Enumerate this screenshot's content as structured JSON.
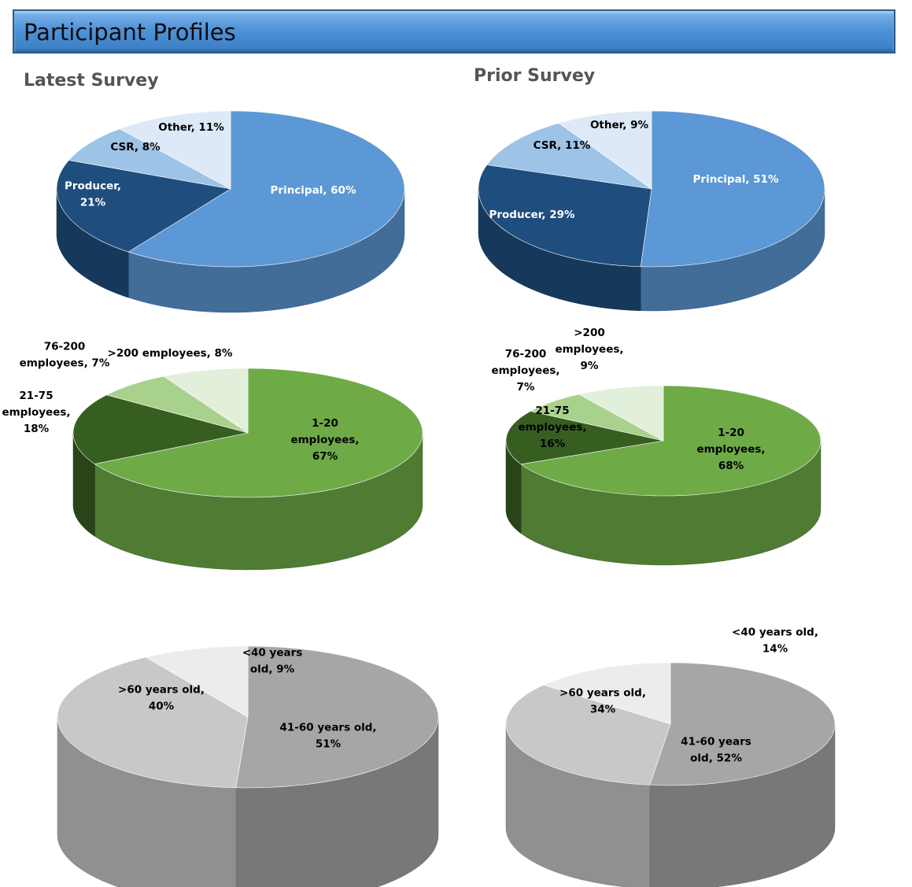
{
  "banner": {
    "title": "Participant Profiles"
  },
  "columns": {
    "latest": "Latest Survey",
    "prior": "Prior Survey"
  },
  "colors": {
    "blue": [
      "#5b98d5",
      "#1f4e7e",
      "#9dc3e6",
      "#dde9f6"
    ],
    "green": [
      "#6eab47",
      "#375e21",
      "#a9d18e",
      "#e2efda"
    ],
    "gray": [
      "#a6a6a6",
      "#c8c8c8",
      "#ececec"
    ]
  },
  "chart_data": [
    {
      "type": "pie",
      "id": "role-latest",
      "panel": "Latest Survey",
      "slices": [
        {
          "label": "Principal, 60%",
          "value": 60
        },
        {
          "label": "Producer, 21%",
          "value": 21
        },
        {
          "label": "CSR, 8%",
          "value": 8
        },
        {
          "label": "Other, 11%",
          "value": 11
        }
      ]
    },
    {
      "type": "pie",
      "id": "role-prior",
      "panel": "Prior Survey",
      "slices": [
        {
          "label": "Principal, 51%",
          "value": 51
        },
        {
          "label": "Producer, 29%",
          "value": 29
        },
        {
          "label": "CSR, 11%",
          "value": 11
        },
        {
          "label": "Other, 9%",
          "value": 9
        }
      ]
    },
    {
      "type": "pie",
      "id": "size-latest",
      "panel": "Latest Survey",
      "slices": [
        {
          "label": "1-20 employees, 67%",
          "value": 67
        },
        {
          "label": "21-75 employees, 18%",
          "value": 18
        },
        {
          "label": "76-200 employees, 7%",
          "value": 7
        },
        {
          "label": ">200 employees, 8%",
          "value": 8
        }
      ]
    },
    {
      "type": "pie",
      "id": "size-prior",
      "panel": "Prior Survey",
      "slices": [
        {
          "label": "1-20 employees, 68%",
          "value": 68
        },
        {
          "label": "21-75 employees, 16%",
          "value": 16
        },
        {
          "label": "76-200 employees, 7%",
          "value": 7
        },
        {
          "label": ">200 employees, 9%",
          "value": 9
        }
      ]
    },
    {
      "type": "pie",
      "id": "age-latest",
      "panel": "Latest Survey",
      "slices": [
        {
          "label": "41-60 years old, 51%",
          "value": 51
        },
        {
          "label": ">60 years old, 40%",
          "value": 40
        },
        {
          "label": "<40 years old, 9%",
          "value": 9
        }
      ]
    },
    {
      "type": "pie",
      "id": "age-prior",
      "panel": "Prior Survey",
      "slices": [
        {
          "label": "41-60 years old, 52%",
          "value": 52
        },
        {
          "label": ">60 years old, 34%",
          "value": 34
        },
        {
          "label": "<40 years old, 14%",
          "value": 14
        }
      ]
    }
  ]
}
